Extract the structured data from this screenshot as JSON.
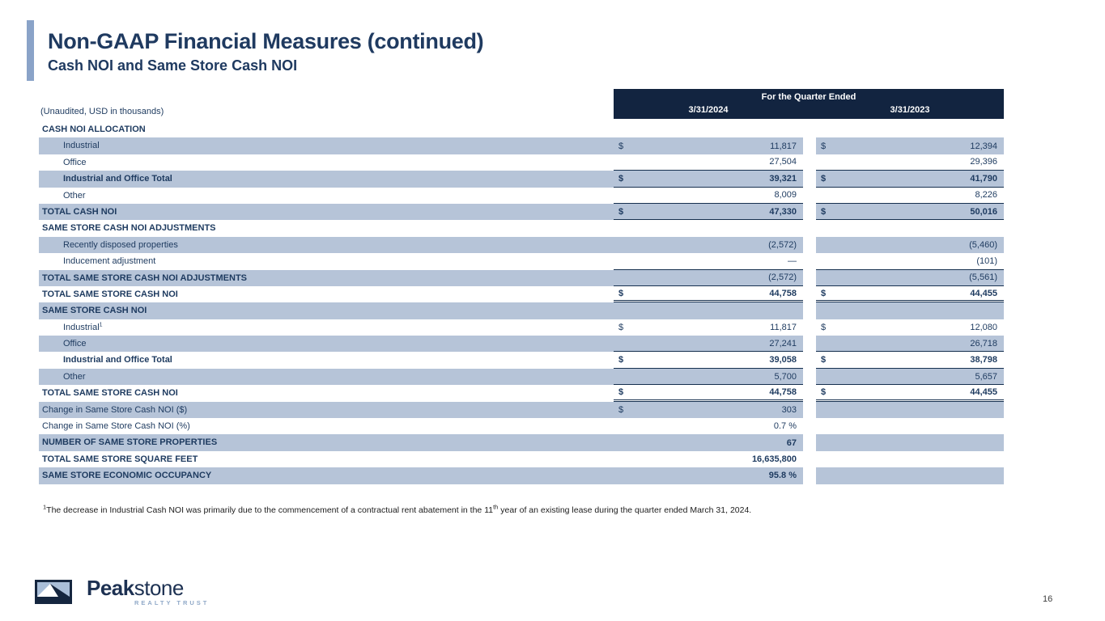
{
  "page": {
    "number": "16"
  },
  "header": {
    "title": "Non-GAAP Financial Measures (continued)",
    "subtitle": "Cash NOI and Same Store Cash NOI"
  },
  "colors": {
    "header_bg": "#122440",
    "row_stripe": "#b6c4d8",
    "accent_bar": "#8aa3c8",
    "text_navy": "#1d3a5f"
  },
  "table": {
    "unaudited_note": "(Unaudited, USD in thousands)",
    "quarter_header": "For the Quarter Ended",
    "col_2024": "3/31/2024",
    "col_2023": "3/31/2023",
    "rows": [
      {
        "label": "CASH NOI ALLOCATION",
        "bg": "white",
        "bold": true,
        "indent": false,
        "d1": "",
        "v1": "",
        "d2": "",
        "v2": "",
        "vbold": false,
        "line": "none"
      },
      {
        "label": "Industrial",
        "bg": "blue",
        "bold": false,
        "indent": true,
        "d1": "$",
        "v1": "11,817",
        "d2": "$",
        "v2": "12,394",
        "vbold": false,
        "line": "none"
      },
      {
        "label": "Office",
        "bg": "white",
        "bold": false,
        "indent": true,
        "d1": "",
        "v1": "27,504",
        "d2": "",
        "v2": "29,396",
        "vbold": false,
        "line": "single"
      },
      {
        "label": "Industrial and Office Total",
        "bg": "blue",
        "bold": true,
        "indent": true,
        "d1": "$",
        "v1": "39,321",
        "d2": "$",
        "v2": "41,790",
        "vbold": true,
        "line": "single"
      },
      {
        "label": "Other",
        "bg": "white",
        "bold": false,
        "indent": true,
        "d1": "",
        "v1": "8,009",
        "d2": "",
        "v2": "8,226",
        "vbold": false,
        "line": "single"
      },
      {
        "label": "TOTAL CASH NOI",
        "bg": "blue",
        "bold": true,
        "indent": false,
        "d1": "$",
        "v1": "47,330",
        "d2": "$",
        "v2": "50,016",
        "vbold": true,
        "line": "single"
      },
      {
        "label": "SAME STORE CASH NOI ADJUSTMENTS",
        "bg": "white",
        "bold": true,
        "indent": false,
        "d1": "",
        "v1": "",
        "d2": "",
        "v2": "",
        "vbold": false,
        "line": "none"
      },
      {
        "label": "Recently disposed properties",
        "bg": "blue",
        "bold": false,
        "indent": true,
        "d1": "",
        "v1": "(2,572)",
        "d2": "",
        "v2": "(5,460)",
        "vbold": false,
        "line": "none"
      },
      {
        "label": "Inducement adjustment",
        "bg": "white",
        "bold": false,
        "indent": true,
        "d1": "",
        "v1": "—",
        "d2": "",
        "v2": "(101)",
        "vbold": false,
        "line": "single"
      },
      {
        "label": "TOTAL SAME STORE CASH NOI ADJUSTMENTS",
        "bg": "blue",
        "bold": true,
        "indent": false,
        "d1": "",
        "v1": "(2,572)",
        "d2": "",
        "v2": "(5,561)",
        "vbold": false,
        "line": "single"
      },
      {
        "label": "TOTAL SAME STORE CASH NOI",
        "bg": "white",
        "bold": true,
        "indent": false,
        "d1": "$",
        "v1": "44,758",
        "d2": "$",
        "v2": "44,455",
        "vbold": true,
        "line": "double"
      },
      {
        "label": "SAME STORE CASH NOI",
        "bg": "blue",
        "bold": true,
        "indent": false,
        "d1": "",
        "v1": "",
        "d2": "",
        "v2": "",
        "vbold": false,
        "line": "none"
      },
      {
        "label": "Industrial",
        "sup": "1",
        "bg": "white",
        "bold": false,
        "indent": true,
        "d1": "$",
        "v1": "11,817",
        "d2": "$",
        "v2": "12,080",
        "vbold": false,
        "line": "none"
      },
      {
        "label": "Office",
        "bg": "blue",
        "bold": false,
        "indent": true,
        "d1": "",
        "v1": "27,241",
        "d2": "",
        "v2": "26,718",
        "vbold": false,
        "line": "single"
      },
      {
        "label": "Industrial and Office Total",
        "bg": "white",
        "bold": true,
        "indent": true,
        "d1": "$",
        "v1": "39,058",
        "d2": "$",
        "v2": "38,798",
        "vbold": true,
        "line": "single"
      },
      {
        "label": "Other",
        "bg": "blue",
        "bold": false,
        "indent": true,
        "d1": "",
        "v1": "5,700",
        "d2": "",
        "v2": "5,657",
        "vbold": false,
        "line": "single"
      },
      {
        "label": "TOTAL SAME STORE CASH NOI",
        "bg": "white",
        "bold": true,
        "indent": false,
        "d1": "$",
        "v1": "44,758",
        "d2": "$",
        "v2": "44,455",
        "vbold": true,
        "line": "double"
      },
      {
        "label": "Change in Same Store Cash NOI ($)",
        "bg": "blue",
        "bold": false,
        "indent": false,
        "d1": "$",
        "v1": "303",
        "d2": "",
        "v2": "",
        "vbold": false,
        "line": "none"
      },
      {
        "label": "Change in Same Store Cash NOI (%)",
        "bg": "white",
        "bold": false,
        "indent": false,
        "d1": "",
        "v1": "0.7 %",
        "d2": "",
        "v2": "",
        "vbold": false,
        "line": "none"
      },
      {
        "label": "NUMBER OF SAME STORE PROPERTIES",
        "bg": "blue",
        "bold": true,
        "indent": false,
        "d1": "",
        "v1": "67",
        "d2": "",
        "v2": "",
        "vbold": true,
        "line": "none"
      },
      {
        "label": "TOTAL SAME STORE SQUARE FEET",
        "bg": "white",
        "bold": true,
        "indent": false,
        "d1": "",
        "v1": "16,635,800",
        "d2": "",
        "v2": "",
        "vbold": true,
        "line": "none"
      },
      {
        "label": "SAME STORE ECONOMIC OCCUPANCY",
        "bg": "blue",
        "bold": true,
        "indent": false,
        "d1": "",
        "v1": "95.8 %",
        "d2": "",
        "v2": "",
        "vbold": true,
        "line": "none"
      }
    ]
  },
  "footnote": {
    "marker": "1",
    "text_main": "The decrease in Industrial Cash NOI was primarily due to the commencement of a contractual rent abatement in the 11",
    "ordinal_suffix": "th",
    "text_tail": " year of an existing lease during the quarter ended March 31, 2024."
  },
  "logo": {
    "brand_bold": "Peak",
    "brand_light": "stone",
    "tagline": "REALTY TRUST"
  }
}
